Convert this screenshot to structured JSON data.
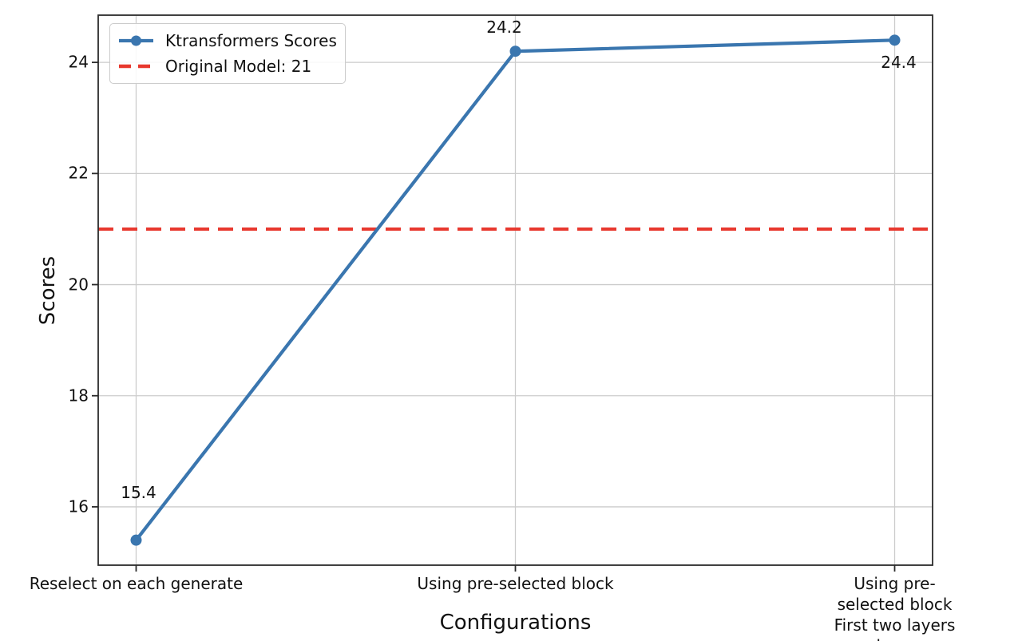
{
  "chart_data": {
    "type": "line",
    "title": "",
    "xlabel": "Configurations",
    "ylabel": "Scores",
    "categories": [
      "Reselect on each generate",
      "Using pre-selected block",
      "Using pre-selected block\nFirst two layers dense"
    ],
    "series": [
      {
        "name": "Ktransformers Scores",
        "color": "#3a76af",
        "values": [
          15.4,
          24.2,
          24.4
        ],
        "point_labels": [
          "15.4",
          "24.2",
          "24.4"
        ]
      }
    ],
    "reference_line": {
      "name": "Original Model: 21",
      "value": 21,
      "color": "#e8382e",
      "style": "dashed"
    },
    "yticks": [
      16,
      18,
      20,
      22,
      24
    ],
    "ylim": [
      14.95,
      24.85
    ],
    "grid": true,
    "legend_position": "upper left",
    "colors": {
      "grid": "#cccccc",
      "spine": "#2b2b2b",
      "text": "#111111",
      "background": "#ffffff"
    }
  }
}
